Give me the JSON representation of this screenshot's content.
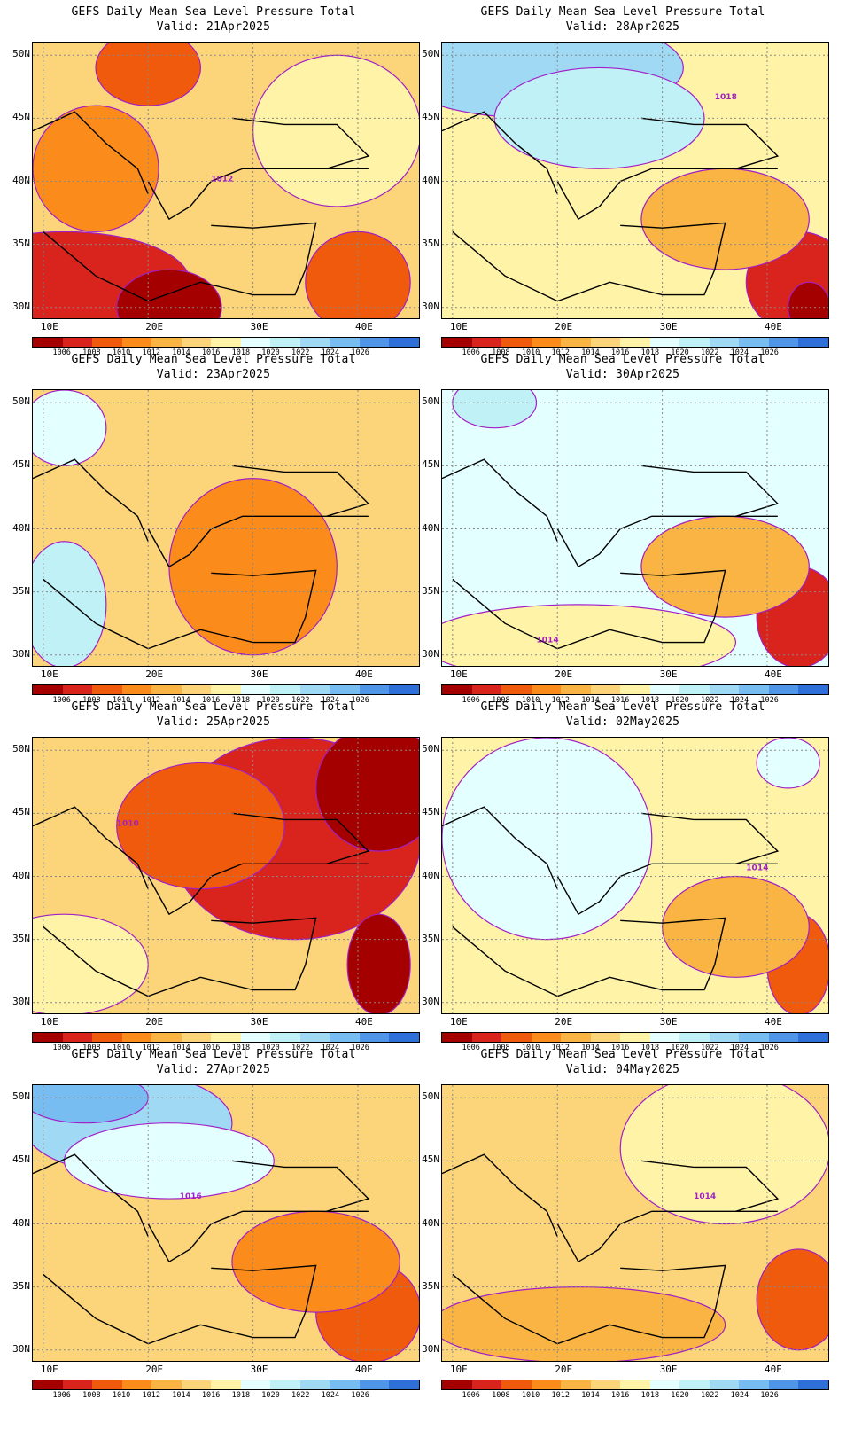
{
  "colors": {
    "scale": [
      "#a50000",
      "#d8241c",
      "#ef5a0c",
      "#fb8c1c",
      "#f9b443",
      "#fcd57a",
      "#fff3a8",
      "#e4ffff",
      "#bff1f7",
      "#9fd9f3",
      "#78bdf1",
      "#5096e8",
      "#2f6fd8"
    ],
    "contour": "#a21fc7"
  },
  "colorbar": {
    "labels": [
      "1006",
      "1008",
      "1010",
      "1012",
      "1014",
      "1016",
      "1018",
      "1020",
      "1022",
      "1024",
      "1026"
    ]
  },
  "axes": {
    "lat_labels": [
      "50N",
      "45N",
      "40N",
      "35N",
      "30N"
    ],
    "lon_labels": [
      "10E",
      "20E",
      "30E",
      "40E"
    ]
  },
  "panels": [
    {
      "title": "GEFS Daily Mean Sea Level Pressure Total",
      "valid": "Valid: 21Apr2025",
      "background_idx": 5,
      "blobs": [
        {
          "lon": 12,
          "lat": 32,
          "rx": 12,
          "ry": 4,
          "idx": 1
        },
        {
          "lon": 22,
          "lat": 30,
          "rx": 5,
          "ry": 3,
          "idx": 0
        },
        {
          "lon": 40,
          "lat": 32,
          "rx": 5,
          "ry": 4,
          "idx": 2
        },
        {
          "lon": 20,
          "lat": 49,
          "rx": 5,
          "ry": 3,
          "idx": 2
        },
        {
          "lon": 38,
          "lat": 44,
          "rx": 8,
          "ry": 6,
          "idx": 6
        },
        {
          "lon": 15,
          "lat": 41,
          "rx": 6,
          "ry": 5,
          "idx": 3
        }
      ],
      "contour_label": "1012",
      "label_lon": 26,
      "label_lat": 40
    },
    {
      "title": "GEFS Daily Mean Sea Level Pressure Total",
      "valid": "Valid: 28Apr2025",
      "background_idx": 6,
      "blobs": [
        {
          "lon": 18,
          "lat": 49,
          "rx": 14,
          "ry": 4,
          "idx": 9
        },
        {
          "lon": 24,
          "lat": 45,
          "rx": 10,
          "ry": 4,
          "idx": 8
        },
        {
          "lon": 43,
          "lat": 32,
          "rx": 5,
          "ry": 4,
          "idx": 1
        },
        {
          "lon": 44,
          "lat": 30,
          "rx": 2,
          "ry": 2,
          "idx": 0
        },
        {
          "lon": 36,
          "lat": 37,
          "rx": 8,
          "ry": 4,
          "idx": 4
        }
      ],
      "contour_label": "1018",
      "label_lon": 35,
      "label_lat": 46.5
    },
    {
      "title": "GEFS Daily Mean Sea Level Pressure Total",
      "valid": "Valid: 23Apr2025",
      "background_idx": 5,
      "blobs": [
        {
          "lon": 31,
          "lat": 36,
          "rx": 5,
          "ry": 5,
          "idx": 2
        },
        {
          "lon": 31,
          "lat": 34,
          "rx": 1.5,
          "ry": 1.5,
          "idx": 1
        },
        {
          "lon": 12,
          "lat": 34,
          "rx": 4,
          "ry": 5,
          "idx": 8
        },
        {
          "lon": 12,
          "lat": 48,
          "rx": 4,
          "ry": 3,
          "idx": 7
        },
        {
          "lon": 30,
          "lat": 37,
          "rx": 8,
          "ry": 7,
          "idx": 3
        }
      ],
      "contour_label": "",
      "label_lon": 0,
      "label_lat": 0
    },
    {
      "title": "GEFS Daily Mean Sea Level Pressure Total",
      "valid": "Valid: 30Apr2025",
      "background_idx": 7,
      "blobs": [
        {
          "lon": 43,
          "lat": 33,
          "rx": 4,
          "ry": 4,
          "idx": 1
        },
        {
          "lon": 36,
          "lat": 37,
          "rx": 8,
          "ry": 4,
          "idx": 4
        },
        {
          "lon": 22,
          "lat": 31,
          "rx": 15,
          "ry": 3,
          "idx": 6
        },
        {
          "lon": 14,
          "lat": 50,
          "rx": 4,
          "ry": 2,
          "idx": 8
        }
      ],
      "contour_label": "1014",
      "label_lon": 18,
      "label_lat": 31
    },
    {
      "title": "GEFS Daily Mean Sea Level Pressure Total",
      "valid": "Valid: 25Apr2025",
      "background_idx": 5,
      "blobs": [
        {
          "lon": 34,
          "lat": 43,
          "rx": 12,
          "ry": 8,
          "idx": 1
        },
        {
          "lon": 42,
          "lat": 47,
          "rx": 6,
          "ry": 5,
          "idx": 0
        },
        {
          "lon": 42,
          "lat": 33,
          "rx": 3,
          "ry": 4,
          "idx": 0
        },
        {
          "lon": 25,
          "lat": 44,
          "rx": 8,
          "ry": 5,
          "idx": 2
        },
        {
          "lon": 12,
          "lat": 33,
          "rx": 8,
          "ry": 4,
          "idx": 6
        }
      ],
      "contour_label": "1010",
      "label_lon": 17,
      "label_lat": 44
    },
    {
      "title": "GEFS Daily Mean Sea Level Pressure Total",
      "valid": "Valid: 02May2025",
      "background_idx": 6,
      "blobs": [
        {
          "lon": 19,
          "lat": 43,
          "rx": 10,
          "ry": 8,
          "idx": 7
        },
        {
          "lon": 43,
          "lat": 33,
          "rx": 3,
          "ry": 4,
          "idx": 2
        },
        {
          "lon": 37,
          "lat": 36,
          "rx": 7,
          "ry": 4,
          "idx": 4
        },
        {
          "lon": 42,
          "lat": 49,
          "rx": 3,
          "ry": 2,
          "idx": 7
        }
      ],
      "contour_label": "1014",
      "label_lon": 38,
      "label_lat": 40.5
    },
    {
      "title": "GEFS Daily Mean Sea Level Pressure Total",
      "valid": "Valid: 27Apr2025",
      "background_idx": 5,
      "blobs": [
        {
          "lon": 18,
          "lat": 48,
          "rx": 10,
          "ry": 4,
          "idx": 9
        },
        {
          "lon": 14,
          "lat": 50,
          "rx": 6,
          "ry": 2,
          "idx": 10
        },
        {
          "lon": 22,
          "lat": 45,
          "rx": 10,
          "ry": 3,
          "idx": 7
        },
        {
          "lon": 41,
          "lat": 33,
          "rx": 5,
          "ry": 4,
          "idx": 2
        },
        {
          "lon": 36,
          "lat": 37,
          "rx": 8,
          "ry": 4,
          "idx": 3
        }
      ],
      "contour_label": "1016",
      "label_lon": 23,
      "label_lat": 42
    },
    {
      "title": "GEFS Daily Mean Sea Level Pressure Total",
      "valid": "Valid: 04May2025",
      "background_idx": 5,
      "blobs": [
        {
          "lon": 43,
          "lat": 34,
          "rx": 4,
          "ry": 4,
          "idx": 2
        },
        {
          "lon": 22,
          "lat": 32,
          "rx": 14,
          "ry": 3,
          "idx": 4
        },
        {
          "lon": 36,
          "lat": 46,
          "rx": 10,
          "ry": 6,
          "idx": 6
        }
      ],
      "contour_label": "1014",
      "label_lon": 33,
      "label_lat": 42
    }
  ]
}
